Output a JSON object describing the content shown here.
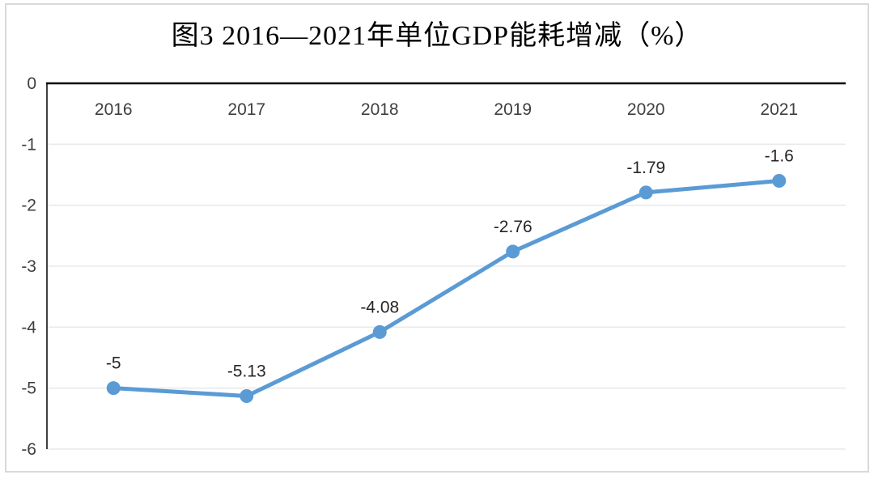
{
  "figure": {
    "title": "图3 2016—2021年单位GDP能耗增减（%）"
  },
  "chart_data": {
    "type": "line",
    "title": "图3 2016—2021年单位GDP能耗增减（%）",
    "categories": [
      "2016",
      "2017",
      "2018",
      "2019",
      "2020",
      "2021"
    ],
    "values": [
      -5,
      -5.13,
      -4.08,
      -2.76,
      -1.79,
      -1.6
    ],
    "data_labels": [
      "-5",
      "-5.13",
      "-4.08",
      "-2.76",
      "-1.79",
      "-1.6"
    ],
    "y_ticks": [
      "0",
      "-1",
      "-2",
      "-3",
      "-4",
      "-5",
      "-6"
    ],
    "ylim": [
      -6,
      0
    ],
    "xlabel": "",
    "ylabel": "",
    "grid": true,
    "legend": "none",
    "marker": "circle",
    "x_labels_position": "inside-top"
  },
  "colors": {
    "line": "#5B9BD5",
    "marker": "#5B9BD5",
    "grid": "#EAEAEA",
    "axis": "#000000",
    "tick_label": "#3F3F3F",
    "data_label": "#262626",
    "frame_border": "#D9D9D9",
    "background": "#FFFFFF"
  }
}
